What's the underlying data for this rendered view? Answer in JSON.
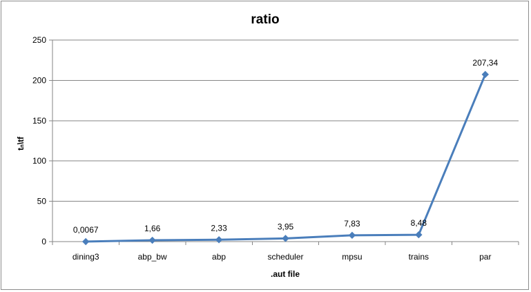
{
  "chart_data": {
    "type": "line",
    "title": "ratio",
    "xlabel": ".aut file",
    "ylabel": "tₙ\\tf",
    "categories": [
      "dining3",
      "abp_bw",
      "abp",
      "scheduler",
      "mpsu",
      "trains",
      "par"
    ],
    "series": [
      {
        "values": [
          0.0067,
          1.66,
          2.33,
          3.95,
          7.83,
          8.48,
          207.34
        ],
        "data_labels": [
          "0,0067",
          "1,66",
          "2,33",
          "3,95",
          "7,83",
          "8,48",
          "207,34"
        ]
      }
    ],
    "ylim": [
      0,
      250
    ],
    "yticks": [
      0,
      50,
      100,
      150,
      200,
      250
    ],
    "ytick_labels": [
      "0",
      "50",
      "100",
      "150",
      "200",
      "250"
    ],
    "grid": true,
    "legend": "none",
    "colors": {
      "line": "#4a7ebb",
      "grid": "#868686"
    }
  }
}
